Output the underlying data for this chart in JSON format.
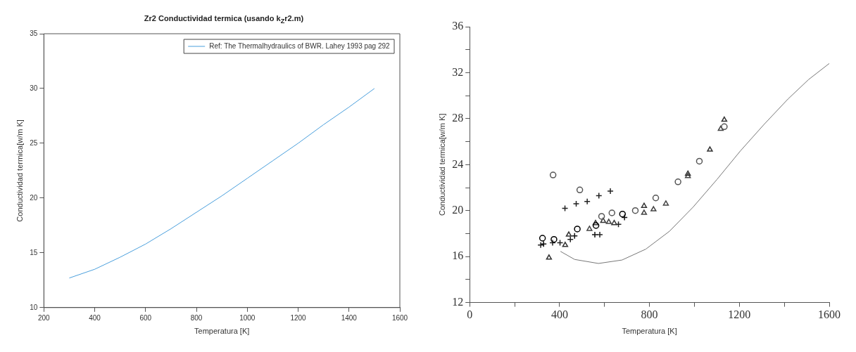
{
  "chart_data": [
    {
      "type": "line",
      "title": "Zr2 Conductividad termica (usando k$_{Z}$r2.m)",
      "xlabel": "Temperatura [K]",
      "ylabel": "Conductividad termica[w/m K]",
      "xlim": [
        200,
        1600
      ],
      "ylim": [
        10,
        35
      ],
      "xticks": [
        200,
        400,
        600,
        800,
        1000,
        1200,
        1400,
        1600
      ],
      "yticks": [
        10,
        15,
        20,
        25,
        30,
        35
      ],
      "legend": "top right",
      "marker": "none",
      "line_style": "solid",
      "series": [
        {
          "name": "Ref: The Thermalhydraulics of BWR. Lahey 1993 pag 292",
          "color": "#4a9fdc",
          "x": [
            300,
            400,
            500,
            600,
            700,
            800,
            900,
            1000,
            1100,
            1200,
            1300,
            1400,
            1500
          ],
          "values": [
            12.7,
            13.5,
            14.6,
            15.8,
            17.2,
            18.7,
            20.2,
            21.8,
            23.4,
            25.0,
            26.7,
            28.3,
            30.0
          ]
        }
      ]
    },
    {
      "type": "scatter",
      "xlabel": "Temperatura [K]",
      "ylabel": "Conductividad termica[w/m K]",
      "xlim": [
        0,
        1600
      ],
      "ylim": [
        12,
        36
      ],
      "xticks": [
        0,
        {
          "value": 200,
          "label": null
        },
        400,
        {
          "value": 600,
          "label": null
        },
        800,
        {
          "value": 1000,
          "label": null
        },
        1200,
        {
          "value": 1400,
          "label": null
        },
        1600
      ],
      "yticks": [
        12,
        {
          "value": 14,
          "label": null
        },
        16,
        {
          "value": 18,
          "label": null
        },
        20,
        {
          "value": 22,
          "label": null
        },
        24,
        {
          "value": 26,
          "label": null
        },
        28,
        {
          "value": 30,
          "label": null
        },
        32,
        {
          "value": 34,
          "label": null
        },
        36
      ],
      "series": [
        {
          "marker": "circle",
          "color": "#555555",
          "x": [
            371,
            490,
            587,
            633,
            737,
            828,
            927,
            1022,
            1133
          ],
          "values": [
            23.1,
            21.8,
            19.5,
            19.8,
            20.0,
            21.1,
            22.5,
            24.3,
            27.3
          ]
        },
        {
          "marker": "cross",
          "color": "#222222",
          "x": [
            424,
            474,
            523,
            575,
            626
          ],
          "values": [
            20.2,
            20.6,
            20.8,
            21.3,
            21.7
          ]
        },
        {
          "marker": "circle",
          "color": "#000000",
          "x": [
            324,
            375,
            479,
            562,
            680
          ],
          "values": [
            17.6,
            17.5,
            18.4,
            18.7,
            19.7
          ]
        },
        {
          "marker": "triangle",
          "color": "#333333",
          "x": [
            353,
            425,
            441,
            560,
            594,
            643,
            776,
            971,
            1069,
            1133
          ],
          "values": [
            15.9,
            17.0,
            17.9,
            18.9,
            19.1,
            18.9,
            20.4,
            23.2,
            25.3,
            27.9
          ]
        },
        {
          "marker": "triangle",
          "color": "#444444",
          "x": [
            533,
            619,
            776,
            818,
            873,
            971,
            1117
          ],
          "values": [
            18.4,
            19.0,
            19.8,
            20.1,
            20.6,
            23.0,
            27.1
          ]
        },
        {
          "marker": "cross",
          "color": "#222222",
          "x": [
            316,
            369,
            402,
            448,
            579,
            662
          ],
          "values": [
            17.0,
            17.2,
            17.2,
            17.5,
            17.9,
            18.8
          ]
        },
        {
          "marker": "cross",
          "color": "#111111",
          "x": [
            329,
            467,
            557,
            689
          ],
          "values": [
            17.1,
            17.8,
            17.9,
            19.4
          ]
        },
        {
          "type": "line",
          "marker": "none",
          "color": "#777777",
          "x": [
            404,
            467,
            573,
            678,
            784,
            889,
            994,
            1100,
            1205,
            1310,
            1416,
            1508,
            1600
          ],
          "values": [
            16.45,
            15.75,
            15.4,
            15.7,
            16.65,
            18.2,
            20.3,
            22.7,
            25.2,
            27.5,
            29.7,
            31.4,
            32.8
          ]
        }
      ]
    }
  ]
}
